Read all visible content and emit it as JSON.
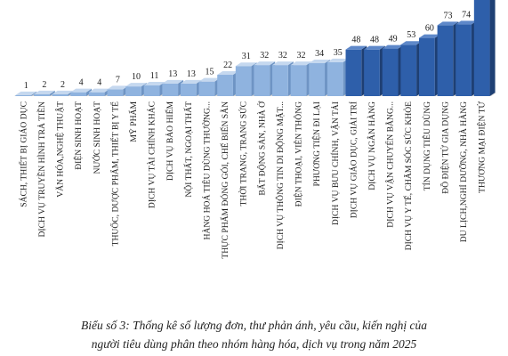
{
  "chart_data": {
    "type": "bar",
    "categories": [
      "SÁCH, THIẾT BỊ GIÁO DỤC",
      "DỊCH VỤ TRUYỀN HÌNH TRẢ TIỀN",
      "VĂN HÓA,NGHỆ THUẬT",
      "ĐIỆN SINH HOẠT",
      "NƯỚC SINH HOẠT",
      "THUỐC, DƯỢC PHẨM, THIẾT BỊ Y TẾ",
      "MỸ PHẨM",
      "DỊCH VỤ TÀI CHÍNH KHÁC",
      "DỊCH VỤ BẢO HIỂM",
      "NỘI THẤT, NGOẠI THẤT",
      "HÀNG HOÁ TIÊU DÙNG THƯỜNG...",
      "THỰC PHẨM ĐÓNG GÓI, CHẾ BIẾN SẴN",
      "THỜI TRANG, TRANG SỨC",
      "BẤT ĐỘNG SẢN, NHÀ Ở",
      "DỊCH VỤ THÔNG TIN DI ĐỘNG MẶT...",
      "ĐIỆN THOẠI, VIỄN THÔNG",
      "PHƯƠNG TIỆN ĐI LẠI",
      "DỊCH VỤ BƯU CHÍNH, VẬN TẢI",
      "DỊCH VỤ GIÁO DỤC, GIẢI TRÍ",
      "DỊCH VỤ NGÂN HÀNG",
      "DỊCH VỤ VẬN CHUYỂN BẰNG...",
      "DỊCH VỤ Y TẾ, CHĂM SÓC SỨC KHỎE",
      "TÍN DỤNG TIÊU DÙNG",
      "ĐỒ ĐIỆN TỬ GIA DỤNG",
      "DU LỊCH,NGHỈ DƯỠNG, NHÀ HÀNG",
      "THƯƠNG MẠI ĐIỆN TỬ"
    ],
    "values": [
      1,
      2,
      2,
      4,
      4,
      7,
      10,
      11,
      13,
      13,
      15,
      22,
      31,
      32,
      32,
      32,
      34,
      35,
      48,
      48,
      49,
      53,
      60,
      73,
      74,
      100
    ],
    "value_labels": [
      "1",
      "2",
      "2",
      "4",
      "4",
      "7",
      "10",
      "11",
      "13",
      "13",
      "15",
      "22",
      "31",
      "32",
      "32",
      "32",
      "34",
      "35",
      "48",
      "48",
      "49",
      "53",
      "60",
      "73",
      "74",
      ""
    ],
    "ylim": [
      0,
      100
    ],
    "grid": false,
    "legend": "none",
    "colors": {
      "light_front": "#8FB3DF",
      "light_top": "#C5D8EF",
      "light_side": "#6E94C4",
      "dark_front": "#2E5FAA",
      "dark_top": "#5E88C9",
      "dark_side": "#1E3F73",
      "floor": "#D6D6D6",
      "text": "#1a1a1a"
    }
  },
  "caption": {
    "line1": "Biểu số 3: Thống kê số lượng đơn, thư phản ánh, yêu cầu, kiến nghị của",
    "line2": "người tiêu dùng phân theo nhóm hàng hóa, dịch vụ trong năm 2025"
  }
}
